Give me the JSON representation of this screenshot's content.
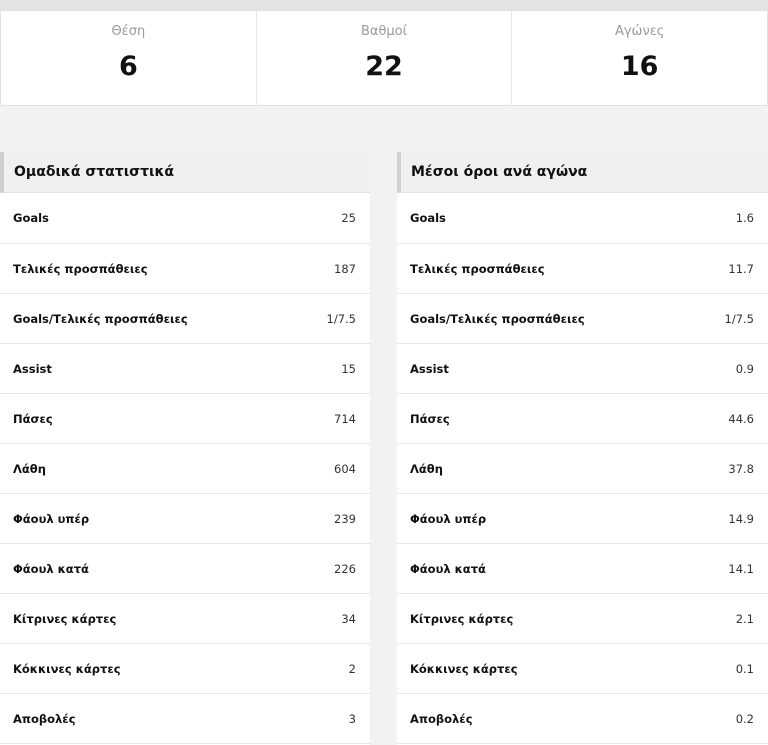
{
  "summary": [
    {
      "label": "Θέση",
      "value": "6"
    },
    {
      "label": "Βαθμοί",
      "value": "22"
    },
    {
      "label": "Αγώνες",
      "value": "16"
    }
  ],
  "team_stats": {
    "title": "Ομαδικά στατιστικά",
    "rows": [
      {
        "label": "Goals",
        "value": "25"
      },
      {
        "label": "Τελικές προσπάθειες",
        "value": "187"
      },
      {
        "label": "Goals/Τελικές προσπάθειες",
        "value": "1/7.5"
      },
      {
        "label": "Assist",
        "value": "15"
      },
      {
        "label": "Πάσες",
        "value": "714"
      },
      {
        "label": "Λάθη",
        "value": "604"
      },
      {
        "label": "Φάουλ υπέρ",
        "value": "239"
      },
      {
        "label": "Φάουλ κατά",
        "value": "226"
      },
      {
        "label": "Κίτρινες κάρτες",
        "value": "34"
      },
      {
        "label": "Κόκκινες κάρτες",
        "value": "2"
      },
      {
        "label": "Αποβολές",
        "value": "3"
      }
    ]
  },
  "averages": {
    "title": "Μέσοι όροι ανά αγώνα",
    "rows": [
      {
        "label": "Goals",
        "value": "1.6"
      },
      {
        "label": "Τελικές προσπάθειες",
        "value": "11.7"
      },
      {
        "label": "Goals/Τελικές προσπάθειες",
        "value": "1/7.5"
      },
      {
        "label": "Assist",
        "value": "0.9"
      },
      {
        "label": "Πάσες",
        "value": "44.6"
      },
      {
        "label": "Λάθη",
        "value": "37.8"
      },
      {
        "label": "Φάουλ υπέρ",
        "value": "14.9"
      },
      {
        "label": "Φάουλ κατά",
        "value": "14.1"
      },
      {
        "label": "Κίτρινες κάρτες",
        "value": "2.1"
      },
      {
        "label": "Κόκκινες κάρτες",
        "value": "0.1"
      },
      {
        "label": "Αποβολές",
        "value": "0.2"
      }
    ]
  }
}
